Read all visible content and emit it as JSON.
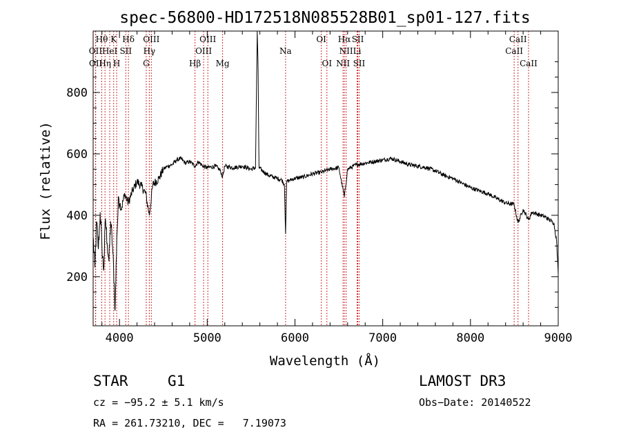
{
  "chart_data": {
    "type": "line",
    "title": "spec-56800-HD172518N085528B01_sp01-127.fits",
    "xlabel": "Wavelength (Å)",
    "ylabel": "Flux (relative)",
    "xlim": [
      3700,
      9000
    ],
    "ylim": [
      40,
      1000
    ],
    "x_ticks": [
      4000,
      5000,
      6000,
      7000,
      8000,
      9000
    ],
    "y_ticks": [
      200,
      400,
      600,
      800
    ],
    "x_tick_labels": [
      "4000",
      "5000",
      "6000",
      "7000",
      "8000",
      "9000"
    ],
    "y_tick_labels": [
      "200",
      "400",
      "600",
      "800"
    ],
    "spectrum_control_points": [
      [
        3700,
        330
      ],
      [
        3720,
        230
      ],
      [
        3740,
        380
      ],
      [
        3760,
        290
      ],
      [
        3780,
        410
      ],
      [
        3800,
        300
      ],
      [
        3820,
        220
      ],
      [
        3840,
        390
      ],
      [
        3860,
        310
      ],
      [
        3880,
        250
      ],
      [
        3900,
        380
      ],
      [
        3920,
        300
      ],
      [
        3940,
        180
      ],
      [
        3950,
        90
      ],
      [
        3970,
        330
      ],
      [
        3990,
        460
      ],
      [
        4020,
        420
      ],
      [
        4060,
        470
      ],
      [
        4100,
        440
      ],
      [
        4150,
        480
      ],
      [
        4200,
        510
      ],
      [
        4250,
        495
      ],
      [
        4300,
        470
      ],
      [
        4340,
        400
      ],
      [
        4380,
        500
      ],
      [
        4450,
        520
      ],
      [
        4500,
        550
      ],
      [
        4550,
        560
      ],
      [
        4600,
        565
      ],
      [
        4650,
        580
      ],
      [
        4700,
        585
      ],
      [
        4750,
        570
      ],
      [
        4800,
        575
      ],
      [
        4861,
        560
      ],
      [
        4900,
        575
      ],
      [
        4950,
        560
      ],
      [
        5000,
        555
      ],
      [
        5100,
        560
      ],
      [
        5150,
        545
      ],
      [
        5175,
        525
      ],
      [
        5200,
        560
      ],
      [
        5300,
        555
      ],
      [
        5400,
        560
      ],
      [
        5500,
        550
      ],
      [
        5550,
        555
      ],
      [
        5570,
        1000
      ],
      [
        5580,
        870
      ],
      [
        5590,
        555
      ],
      [
        5650,
        540
      ],
      [
        5700,
        530
      ],
      [
        5800,
        520
      ],
      [
        5850,
        515
      ],
      [
        5880,
        500
      ],
      [
        5893,
        340
      ],
      [
        5905,
        510
      ],
      [
        5950,
        515
      ],
      [
        6000,
        520
      ],
      [
        6100,
        525
      ],
      [
        6200,
        535
      ],
      [
        6300,
        540
      ],
      [
        6400,
        550
      ],
      [
        6500,
        555
      ],
      [
        6563,
        460
      ],
      [
        6600,
        550
      ],
      [
        6700,
        565
      ],
      [
        6800,
        570
      ],
      [
        6900,
        575
      ],
      [
        7000,
        580
      ],
      [
        7100,
        585
      ],
      [
        7200,
        575
      ],
      [
        7300,
        565
      ],
      [
        7400,
        560
      ],
      [
        7500,
        555
      ],
      [
        7600,
        545
      ],
      [
        7700,
        530
      ],
      [
        7800,
        520
      ],
      [
        7900,
        505
      ],
      [
        8000,
        490
      ],
      [
        8100,
        480
      ],
      [
        8200,
        470
      ],
      [
        8300,
        455
      ],
      [
        8400,
        440
      ],
      [
        8498,
        435
      ],
      [
        8542,
        375
      ],
      [
        8600,
        420
      ],
      [
        8662,
        385
      ],
      [
        8700,
        410
      ],
      [
        8800,
        400
      ],
      [
        8850,
        395
      ],
      [
        8900,
        385
      ],
      [
        8950,
        375
      ],
      [
        8980,
        320
      ],
      [
        9000,
        210
      ]
    ],
    "lines": [
      {
        "label": "Hθ",
        "wave": 3798,
        "row": 0
      },
      {
        "label": "OII",
        "wave": 3727,
        "row": 1
      },
      {
        "label": "OII",
        "wave": 3729,
        "row": 2
      },
      {
        "label": "K",
        "wave": 3934,
        "row": 0
      },
      {
        "label": "HeI",
        "wave": 3889,
        "row": 1
      },
      {
        "label": "Hη",
        "wave": 3835,
        "row": 2
      },
      {
        "label": "SII",
        "wave": 4072,
        "row": 1
      },
      {
        "label": "H",
        "wave": 3968,
        "row": 2
      },
      {
        "label": "Hδ",
        "wave": 4102,
        "row": 0
      },
      {
        "label": "OIII",
        "wave": 4363,
        "row": 0
      },
      {
        "label": "Hγ",
        "wave": 4340,
        "row": 1
      },
      {
        "label": "G",
        "wave": 4305,
        "row": 2
      },
      {
        "label": "OIII",
        "wave": 5007,
        "row": 0
      },
      {
        "label": "OIII",
        "wave": 4959,
        "row": 1
      },
      {
        "label": "Hβ",
        "wave": 4861,
        "row": 2
      },
      {
        "label": "Mg",
        "wave": 5175,
        "row": 2
      },
      {
        "label": "Na",
        "wave": 5893,
        "row": 1
      },
      {
        "label": "OI",
        "wave": 6300,
        "row": 0
      },
      {
        "label": "OI",
        "wave": 6364,
        "row": 2
      },
      {
        "label": "Hα",
        "wave": 6563,
        "row": 0
      },
      {
        "label": "NII",
        "wave": 6583,
        "row": 1
      },
      {
        "label": "NII",
        "wave": 6548,
        "row": 2
      },
      {
        "label": "SII",
        "wave": 6716,
        "row": 0
      },
      {
        "label": "Li",
        "wave": 6708,
        "row": 1
      },
      {
        "label": "SII",
        "wave": 6731,
        "row": 2
      },
      {
        "label": "CaII",
        "wave": 8542,
        "row": 0
      },
      {
        "label": "CaII",
        "wave": 8498,
        "row": 1
      },
      {
        "label": "CaII",
        "wave": 8662,
        "row": 2
      }
    ]
  },
  "info": {
    "object_class": "STAR",
    "subclass": "G1",
    "survey": "LAMOST DR3",
    "redshift": "cz = −95.2 ± 5.1 km/s",
    "obs_date": "Obs−Date: 20140522",
    "coords": "RA = 261.73210, DEC =   7.19073"
  },
  "colors": {
    "line_marker": "#cc2a2a",
    "spectrum": "#000000",
    "axis": "#000000"
  }
}
